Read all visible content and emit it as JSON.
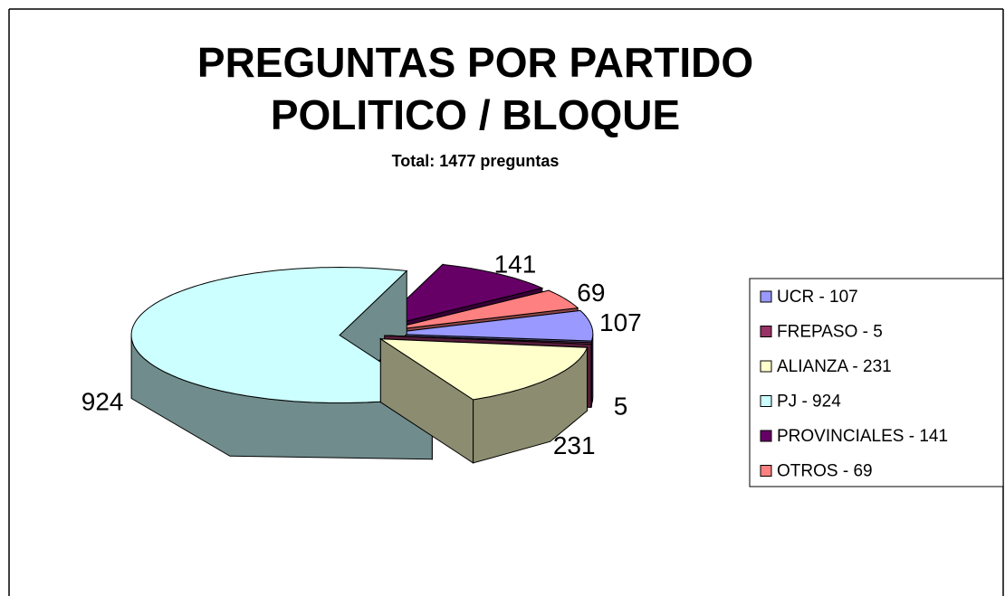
{
  "chart_data": {
    "type": "pie3d",
    "title": "PREGUNTAS POR PARTIDO POLITICO / BLOQUE",
    "subtitle": "Total: 1477 preguntas",
    "categories": [
      "UCR - 107",
      "FREPASO - 5",
      "ALIANZA - 231",
      "PJ - 924",
      "PROVINCIALES - 141",
      "OTROS - 69"
    ],
    "values": [
      107,
      5,
      231,
      924,
      141,
      69
    ],
    "colors": [
      "#9999ff",
      "#993366",
      "#ffffcc",
      "#ccffff",
      "#660066",
      "#ff8080"
    ],
    "legend": "right"
  }
}
